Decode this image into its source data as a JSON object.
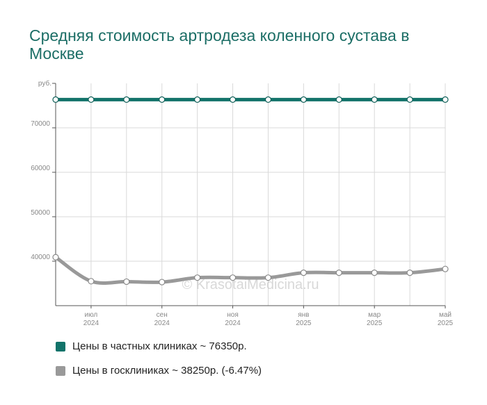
{
  "title": "Средняя стоимость артродеза коленного сустава в Москве",
  "watermark": "© KrasotaiMedicina.ru",
  "colors": {
    "private": "#12736a",
    "public": "#999999",
    "grid": "#d9d9d9",
    "axis": "#555555",
    "tick_text": "#888888"
  },
  "legend": [
    {
      "label": "Цены в частных клиниках ~ 76350р.",
      "color": "#12736a"
    },
    {
      "label": "Цены в госклиниках ~ 38250р. (-6.47%)",
      "color": "#999999"
    }
  ],
  "chart_data": {
    "type": "line",
    "title": "Средняя стоимость артродеза коленного сустава в Москве",
    "ylabel": "руб.",
    "ylim": [
      30000,
      80000
    ],
    "y_ticks": [
      40000,
      50000,
      60000,
      70000
    ],
    "x_tick_labels": [
      {
        "month": "июл",
        "year": "2024"
      },
      {
        "month": "сен",
        "year": "2024"
      },
      {
        "month": "ноя",
        "year": "2024"
      },
      {
        "month": "янв",
        "year": "2025"
      },
      {
        "month": "мар",
        "year": "2025"
      },
      {
        "month": "май",
        "year": "2025"
      }
    ],
    "x": [
      "2024-06",
      "2024-07",
      "2024-08",
      "2024-09",
      "2024-10",
      "2024-11",
      "2024-12",
      "2025-01",
      "2025-02",
      "2025-03",
      "2025-04",
      "2025-05"
    ],
    "series": [
      {
        "name": "Цены в частных клиниках ~ 76350р.",
        "values": [
          76350,
          76350,
          76350,
          76350,
          76350,
          76350,
          76350,
          76350,
          76350,
          76350,
          76350,
          76350
        ]
      },
      {
        "name": "Цены в госклиниках ~ 38250р. (-6.47%)",
        "values": [
          40900,
          35500,
          35400,
          35300,
          36300,
          36300,
          36300,
          37400,
          37400,
          37400,
          37400,
          38250
        ]
      }
    ],
    "grid": true,
    "legend_position": "bottom"
  }
}
